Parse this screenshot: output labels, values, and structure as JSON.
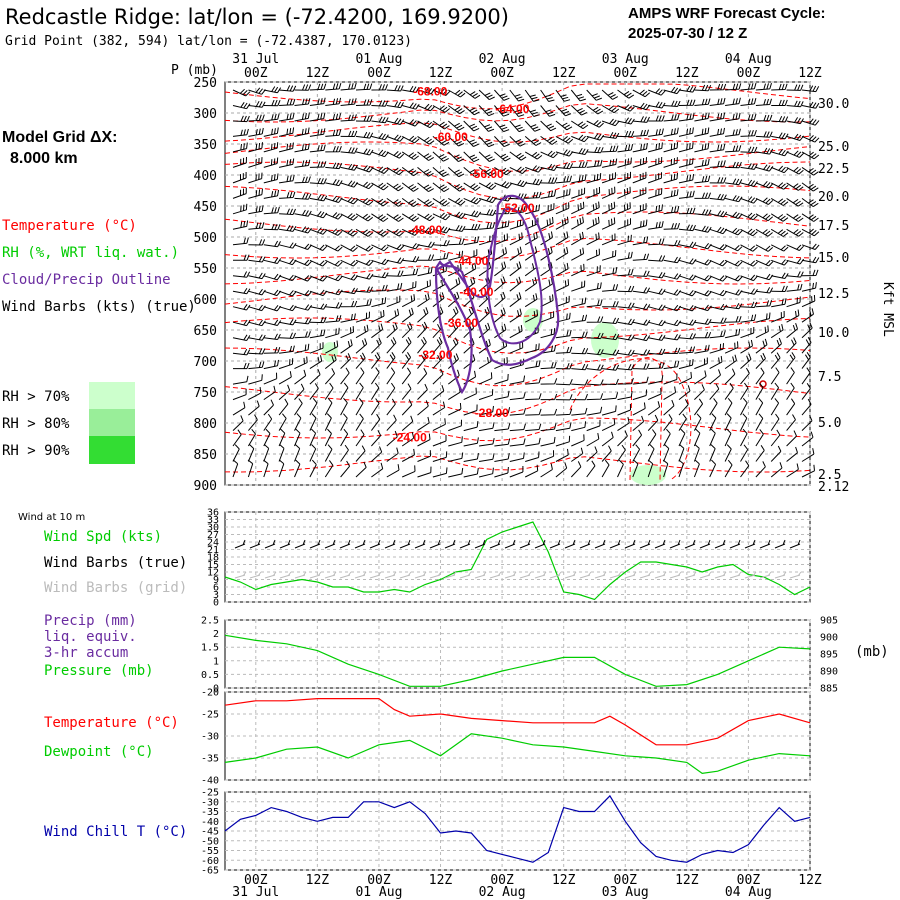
{
  "header": {
    "title": "Redcastle Ridge:  lat/lon = (-72.4200, 169.9200)",
    "subtitle": "Grid Point (382, 594) lat/lon = (-72.4387, 170.0123)",
    "cycle_line1": "AMPS WRF Forecast Cycle:",
    "cycle_line2": "2025-07-30 / 12  Z"
  },
  "model_grid": {
    "line1": "Model Grid ΔX:",
    "line2": "8.000 km"
  },
  "legend": {
    "temperature": "Temperature (°C)",
    "rh": "RH (%, WRT liq. wat.)",
    "cloud": "Cloud/Precip Outline",
    "wind": "Wind Barbs (kts) (true)",
    "rh70": "RH > 70%",
    "rh80": "RH > 80%",
    "rh90": "RH > 90%"
  },
  "colors": {
    "temperature": "#ff0000",
    "rh_label": "#00cc00",
    "cloud": "#6a2ca0",
    "rh70": "#ccffcc",
    "rh80": "#99ee99",
    "rh90": "#33dd33",
    "wind_speed": "#00cc00",
    "precip": "#6a2ca0",
    "pressure": "#00cc00",
    "dewpoint": "#00cc00",
    "wind_chill": "#0000aa",
    "grid_barbs": "#bbbbbb"
  },
  "time_axis": {
    "hours": [
      "00Z",
      "12Z",
      "00Z",
      "12Z",
      "00Z",
      "12Z",
      "00Z",
      "12Z",
      "00Z",
      "12Z"
    ],
    "dates": [
      "31 Jul",
      "01 Aug",
      "02 Aug",
      "03 Aug",
      "04 Aug"
    ],
    "p_label": "P (mb)"
  },
  "panels": {
    "wind10m_title": "Wind at 10 m",
    "wind_spd_label": "Wind Spd (kts)",
    "barbs_true_label": "Wind Barbs (true)",
    "barbs_grid_label": "Wind Barbs (grid)",
    "precip_label": "Precip (mm)",
    "precip_sub1": "liq. equiv.",
    "precip_sub2": "3-hr accum",
    "pressure_label": "Pressure (mb)",
    "mb_unit": "(mb)",
    "temp_label": "Temperature (°C)",
    "dew_label": "Dewpoint (°C)",
    "chill_label": "Wind Chill T (°C)",
    "kft_label": "Kft MSL"
  },
  "chart_data": [
    {
      "type": "line",
      "panel": "cross-section",
      "y_axis": {
        "label": "P (mb)",
        "ticks": [
          250,
          300,
          350,
          400,
          450,
          500,
          550,
          600,
          650,
          700,
          750,
          800,
          850,
          900
        ],
        "range": [
          250,
          900
        ],
        "inverted": true
      },
      "y2_axis": {
        "label": "Kft MSL",
        "ticks": [
          "30.0",
          "25.0",
          "22.5",
          "20.0",
          "17.5",
          "15.0",
          "12.5",
          "10.0",
          "7.5",
          "5.0",
          "2.5",
          "2.12"
        ]
      },
      "x_range_hours": [
        0,
        114
      ],
      "temperature_labels": [
        {
          "text": "-68.00",
          "hour": 40,
          "p": 272
        },
        {
          "text": "-64.00",
          "hour": 56,
          "p": 300
        },
        {
          "text": "-60.00",
          "hour": 44,
          "p": 345
        },
        {
          "text": "-56.00",
          "hour": 51,
          "p": 405
        },
        {
          "text": "-52.00",
          "hour": 57,
          "p": 460
        },
        {
          "text": "-48.00",
          "hour": 39,
          "p": 495
        },
        {
          "text": "-44.00",
          "hour": 48,
          "p": 545
        },
        {
          "text": "-40.00",
          "hour": 49,
          "p": 595
        },
        {
          "text": "-36.00",
          "hour": 46,
          "p": 645
        },
        {
          "text": "-32.00",
          "hour": 41,
          "p": 697
        },
        {
          "text": "-28.00",
          "hour": 52,
          "p": 790
        },
        {
          "text": "-24.00",
          "hour": 36,
          "p": 830
        }
      ]
    },
    {
      "type": "line",
      "panel": "wind at 10 m",
      "ylabel": "Wind Spd (kts)",
      "y_ticks": [
        0,
        3,
        6,
        9,
        12,
        15,
        18,
        21,
        24,
        27,
        30,
        33,
        36
      ],
      "ylim": [
        0,
        36
      ],
      "series": [
        {
          "name": "Wind Spd (kts)",
          "x": [
            0,
            3,
            6,
            9,
            12,
            15,
            18,
            21,
            24,
            27,
            30,
            33,
            36,
            39,
            42,
            45,
            48,
            51,
            54,
            57,
            60,
            63,
            66,
            69,
            72,
            75,
            78,
            81,
            84,
            87,
            90,
            93,
            96,
            99,
            102,
            105,
            108,
            111,
            114
          ],
          "values": [
            10,
            8,
            5,
            7,
            8,
            9,
            8,
            6,
            6,
            4,
            4,
            5,
            4,
            7,
            9,
            12,
            13,
            25,
            28,
            30,
            32,
            20,
            4,
            3,
            1,
            7,
            12,
            16,
            16,
            15,
            14,
            12,
            14,
            15,
            11,
            10,
            7,
            3,
            6
          ]
        }
      ]
    },
    {
      "type": "line",
      "panel": "precip/pressure",
      "ylabel": "Precip (mm)",
      "y_ticks": [
        0,
        0.5,
        1.0,
        1.5,
        2.0,
        2.5
      ],
      "ylim": [
        0,
        2.5
      ],
      "y2_ticks": [
        885,
        890,
        895,
        900,
        905
      ],
      "y2_lim": [
        885,
        905
      ],
      "series": [
        {
          "name": "Pressure (mb)",
          "x": [
            0,
            6,
            12,
            18,
            24,
            30,
            36,
            42,
            48,
            54,
            60,
            66,
            72,
            78,
            84,
            90,
            96,
            102,
            108,
            114
          ],
          "values": [
            900.5,
            899,
            898,
            896,
            892,
            889,
            885.5,
            885.5,
            887.5,
            890,
            892,
            894,
            894,
            889,
            885.5,
            886,
            889,
            893,
            897,
            896.5
          ]
        }
      ]
    },
    {
      "type": "line",
      "panel": "temperature/dewpoint",
      "y_ticks": [
        -40,
        -35,
        -30,
        -25,
        -20
      ],
      "ylim": [
        -40,
        -20
      ],
      "series": [
        {
          "name": "Temperature (°C)",
          "x": [
            0,
            6,
            12,
            18,
            24,
            30,
            33,
            36,
            42,
            48,
            54,
            60,
            66,
            72,
            75,
            78,
            84,
            90,
            96,
            102,
            108,
            114
          ],
          "values": [
            -23,
            -22,
            -22,
            -21.5,
            -21.5,
            -21.5,
            -24,
            -25.5,
            -25,
            -26,
            -26.5,
            -27,
            -27,
            -27,
            -25.5,
            -27.5,
            -32,
            -32,
            -30.5,
            -26.5,
            -25,
            -27
          ]
        },
        {
          "name": "Dewpoint (°C)",
          "x": [
            0,
            6,
            12,
            18,
            24,
            30,
            36,
            42,
            48,
            54,
            60,
            66,
            72,
            78,
            84,
            90,
            93,
            96,
            102,
            108,
            114
          ],
          "values": [
            -36,
            -35,
            -33,
            -32.5,
            -35,
            -32,
            -31,
            -34.5,
            -29.5,
            -30.5,
            -32,
            -32.5,
            -33.5,
            -34.5,
            -35,
            -36,
            -38.5,
            -38,
            -35.5,
            -34,
            -34.5
          ]
        }
      ]
    },
    {
      "type": "line",
      "panel": "wind chill",
      "ylabel": "Wind Chill T (°C)",
      "y_ticks": [
        -65,
        -60,
        -55,
        -50,
        -45,
        -40,
        -35,
        -30,
        -25
      ],
      "ylim": [
        -65,
        -25
      ],
      "series": [
        {
          "name": "Wind Chill T (°C)",
          "x": [
            0,
            3,
            6,
            9,
            12,
            15,
            18,
            21,
            24,
            27,
            30,
            33,
            36,
            39,
            42,
            45,
            48,
            51,
            54,
            57,
            60,
            63,
            66,
            69,
            72,
            75,
            78,
            81,
            84,
            87,
            90,
            93,
            96,
            99,
            102,
            105,
            108,
            111,
            114
          ],
          "values": [
            -45,
            -39,
            -37,
            -33,
            -35,
            -38,
            -40,
            -38,
            -38,
            -30,
            -30,
            -33,
            -30,
            -36,
            -46,
            -45,
            -46,
            -55,
            -57,
            -59,
            -61,
            -56,
            -33,
            -35,
            -35,
            -27,
            -40,
            -51,
            -58,
            -60,
            -61,
            -57,
            -55,
            -56,
            -52,
            -42,
            -33,
            -40,
            -38
          ]
        }
      ]
    }
  ]
}
